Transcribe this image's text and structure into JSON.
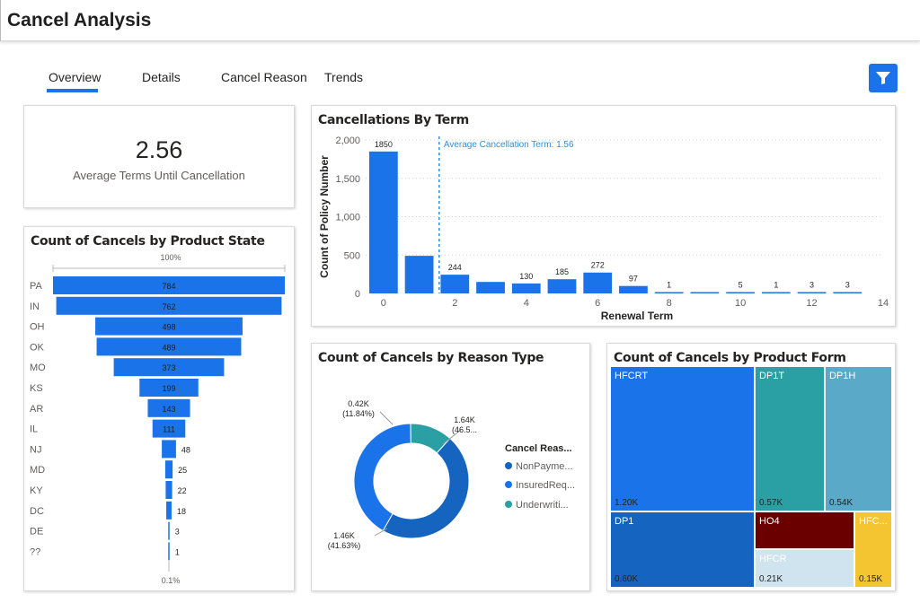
{
  "header": {
    "title": "Cancel Analysis"
  },
  "tabs": [
    {
      "label": "Overview",
      "active": true
    },
    {
      "label": "Details",
      "active": false
    },
    {
      "label": "Cancel Reason",
      "active": false
    },
    {
      "label": "Trends",
      "active": false
    }
  ],
  "filter_icon": "filter-icon",
  "kpi": {
    "value": "2.56",
    "label": "Average Terms Until Cancellation"
  },
  "colors": {
    "primary": "#1a73e8",
    "accent_dark": "#1565c0",
    "teal": "#2aa0a4",
    "light_teal": "#5aa9c8",
    "maroon": "#6b0000",
    "yellow": "#f5c431",
    "light_blue": "#cfe4ee"
  },
  "chart_data": [
    {
      "id": "term",
      "type": "bar",
      "title": "Cancellations By Term",
      "xlabel": "Renewal Term",
      "ylabel": "Count of Policy Number",
      "x": [
        0,
        1,
        2,
        3,
        4,
        5,
        6,
        7,
        8,
        9,
        10,
        11,
        12,
        13
      ],
      "values": [
        1850,
        490,
        244,
        150,
        130,
        185,
        272,
        97,
        1,
        2,
        5,
        1,
        3,
        3
      ],
      "labels": [
        "1850",
        "",
        "244",
        "",
        "130",
        "185",
        "272",
        "97",
        "1",
        "",
        "5",
        "1",
        "3",
        "3"
      ],
      "x_ticks": [
        "0",
        "2",
        "4",
        "6",
        "8",
        "10",
        "12",
        "14"
      ],
      "y_ticks": [
        "0",
        "500",
        "1,000",
        "1,500",
        "2,000"
      ],
      "ylim": [
        0,
        2000
      ],
      "xlim": [
        -0.5,
        14
      ],
      "reference_line": {
        "value": 1.56,
        "label": "Average Cancellation Term: 1.56"
      }
    },
    {
      "id": "state",
      "type": "bar",
      "title": "Count of Cancels by Product State",
      "categories": [
        "PA",
        "IN",
        "OH",
        "OK",
        "MO",
        "KS",
        "AR",
        "IL",
        "NJ",
        "MD",
        "KY",
        "DC",
        "DE",
        "??"
      ],
      "values": [
        784,
        762,
        498,
        489,
        373,
        199,
        143,
        111,
        48,
        25,
        22,
        18,
        3,
        1
      ],
      "top_label": "100%",
      "bottom_label": "0.1%"
    },
    {
      "id": "reason",
      "type": "pie",
      "title": "Count of Cancels by Reason Type",
      "legend_title": "Cancel Reas...",
      "slices": [
        {
          "name": "NonPayme...",
          "value": 1.64,
          "label": "1.64K",
          "pct": "(46.5...",
          "color": "#1565c0"
        },
        {
          "name": "InsuredReq...",
          "value": 1.46,
          "label": "1.46K",
          "pct": "(41.63%)",
          "color": "#1a73e8"
        },
        {
          "name": "Underwriti...",
          "value": 0.42,
          "label": "0.42K",
          "pct": "(11.84%)",
          "color": "#2aa0a4"
        }
      ]
    },
    {
      "id": "form",
      "type": "treemap",
      "title": "Count of Cancels by Product Form",
      "items": [
        {
          "name": "HFCRT",
          "label": "1.20K",
          "color": "#1a73e8"
        },
        {
          "name": "DP1T",
          "label": "0.57K",
          "color": "#2aa0a4"
        },
        {
          "name": "DP1H",
          "label": "0.54K",
          "color": "#5aa9c8"
        },
        {
          "name": "DP1",
          "label": "0.60K",
          "color": "#1565c0"
        },
        {
          "name": "HO4",
          "label": "",
          "color": "#6b0000"
        },
        {
          "name": "HFCR",
          "label": "0.21K",
          "color": "#cfe4ee"
        },
        {
          "name": "HFC...",
          "label": "0.15K",
          "color": "#f5c431"
        }
      ]
    }
  ]
}
